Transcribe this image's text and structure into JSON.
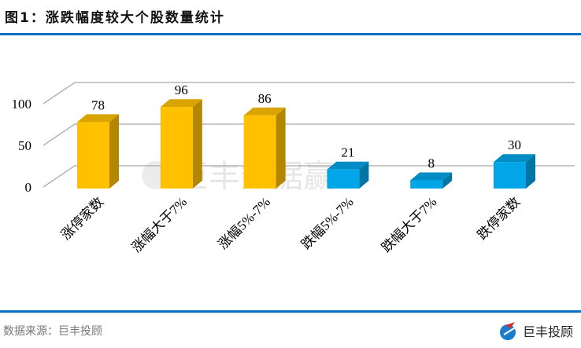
{
  "title": "图1：涨跌幅度较大个股数量统计",
  "source": "数据来源：巨丰投顾",
  "brand": "巨丰投顾",
  "watermark": "巨丰数据赢",
  "colors": {
    "rise": "#ffc000",
    "fall": "#00a6e8",
    "accent": "#0a6fc2"
  },
  "chart_data": {
    "type": "bar",
    "style": "3d",
    "categories": [
      "涨停家数",
      "涨幅大于7%",
      "涨幅5%-7%",
      "跌幅5%-7%",
      "跌幅大于7%",
      "跌停家数"
    ],
    "values": [
      78,
      96,
      86,
      21,
      8,
      30
    ],
    "bar_colors": [
      "#ffc000",
      "#ffc000",
      "#ffc000",
      "#00a6e8",
      "#00a6e8",
      "#00a6e8"
    ],
    "yticks": [
      0,
      50,
      100
    ],
    "ylim": [
      0,
      120
    ],
    "grid": true,
    "legend": "none"
  }
}
